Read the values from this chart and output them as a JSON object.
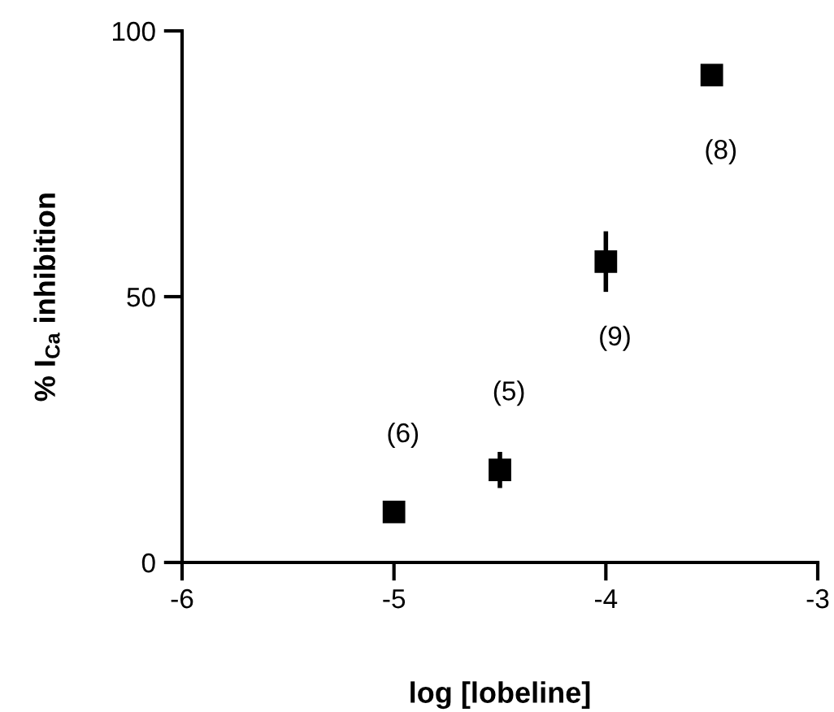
{
  "chart_data": {
    "type": "scatter",
    "xlabel": "log [lobeline]",
    "ylabel": "% I$_{Ca}$ inhibition",
    "x": [
      -5,
      -4.5,
      -4,
      -3.5
    ],
    "values": [
      9.5,
      17.4,
      56.6,
      91.7
    ],
    "errors": [
      1,
      3.4,
      5.7,
      1.5
    ],
    "color": "#000000",
    "marker": "square",
    "xlim": [
      -6,
      -3
    ],
    "xticks": [
      -6,
      -5,
      -4,
      -3
    ],
    "ylim": [
      0,
      100
    ],
    "yticks": [
      0,
      50,
      100
    ],
    "grid": false,
    "annotations": [
      "(6)",
      "(5)",
      "(9)",
      "(8)"
    ]
  }
}
